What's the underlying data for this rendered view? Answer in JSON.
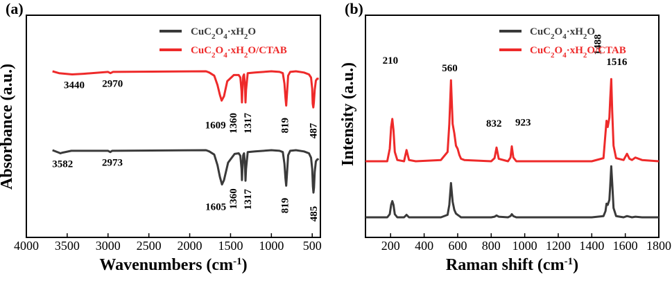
{
  "colors": {
    "black_series": "#3a3a3a",
    "red_series": "#ee2a2a"
  },
  "chart_data": [
    {
      "type": "line",
      "panel_label": "(a)",
      "xlabel_main": "Wavenumbers (cm",
      "xlabel_sup": "-1",
      "xlabel_tail": ")",
      "ylabel": "Absorbance (a.u.)",
      "xlim": [
        4000,
        400
      ],
      "x_reversed": true,
      "y_ticks_shown": false,
      "x_ticks": [
        4000,
        3500,
        3000,
        2500,
        2000,
        1500,
        1000,
        500
      ],
      "legend": {
        "placement": "top-right",
        "entries": [
          {
            "series": 0,
            "parts": [
              [
                "CuC"
              ],
              [
                "2",
                "sub"
              ],
              [
                "O"
              ],
              [
                "4",
                "sub"
              ],
              [
                "·xH"
              ],
              [
                "2",
                "sub"
              ],
              [
                "O"
              ]
            ]
          },
          {
            "series": 1,
            "parts": [
              [
                "CuC"
              ],
              [
                "2",
                "sub"
              ],
              [
                "O"
              ],
              [
                "4",
                "sub"
              ],
              [
                "·xH"
              ],
              [
                "2",
                "sub"
              ],
              [
                "O/CTAB"
              ]
            ]
          }
        ]
      },
      "series": [
        {
          "name": "CuC2O4·xH2O",
          "color": "#3a3a3a",
          "x": [
            3680,
            3600,
            3582,
            3560,
            3450,
            3000,
            2973,
            2950,
            1800,
            1760,
            1700,
            1660,
            1630,
            1605,
            1580,
            1530,
            1450,
            1400,
            1380,
            1365,
            1360,
            1355,
            1345,
            1335,
            1325,
            1317,
            1310,
            1290,
            1200,
            1000,
            900,
            860,
            840,
            828,
            819,
            810,
            795,
            770,
            700,
            600,
            540,
            515,
            500,
            492,
            485,
            478,
            470,
            455,
            440,
            420
          ],
          "y": [
            0.0,
            -0.04,
            -0.05,
            -0.04,
            -0.01,
            -0.01,
            -0.03,
            -0.01,
            0.0,
            -0.02,
            -0.07,
            -0.24,
            -0.43,
            -0.55,
            -0.48,
            -0.2,
            -0.06,
            -0.05,
            -0.09,
            -0.3,
            -0.48,
            -0.32,
            -0.08,
            -0.05,
            -0.2,
            -0.49,
            -0.3,
            -0.03,
            -0.02,
            0.0,
            -0.01,
            -0.03,
            -0.22,
            -0.45,
            -0.57,
            -0.4,
            -0.08,
            -0.01,
            0.0,
            -0.02,
            -0.05,
            -0.12,
            -0.3,
            -0.58,
            -0.68,
            -0.6,
            -0.35,
            -0.18,
            -0.15,
            -0.14
          ]
        },
        {
          "name": "CuC2O4·xH2O/CTAB",
          "color": "#ee2a2a",
          "x": [
            3680,
            3600,
            3440,
            3300,
            3000,
            2970,
            2940,
            1800,
            1760,
            1700,
            1660,
            1630,
            1609,
            1580,
            1540,
            1460,
            1400,
            1380,
            1365,
            1360,
            1355,
            1345,
            1335,
            1325,
            1317,
            1310,
            1290,
            1200,
            1000,
            900,
            860,
            840,
            828,
            819,
            810,
            795,
            770,
            700,
            600,
            540,
            515,
            500,
            494,
            487,
            480,
            470,
            455,
            440,
            420
          ],
          "y": [
            0.0,
            -0.03,
            -0.05,
            -0.04,
            -0.01,
            -0.03,
            -0.01,
            0.0,
            -0.02,
            -0.07,
            -0.22,
            -0.38,
            -0.47,
            -0.4,
            -0.16,
            -0.06,
            -0.06,
            -0.1,
            -0.32,
            -0.5,
            -0.33,
            -0.08,
            -0.05,
            -0.2,
            -0.5,
            -0.3,
            -0.03,
            -0.02,
            0.0,
            -0.01,
            -0.03,
            -0.2,
            -0.42,
            -0.55,
            -0.38,
            -0.07,
            -0.01,
            0.0,
            -0.02,
            -0.05,
            -0.1,
            -0.28,
            -0.52,
            -0.58,
            -0.5,
            -0.3,
            -0.15,
            -0.12,
            -0.12
          ]
        }
      ],
      "annotations": [
        {
          "text": "3440",
          "series": 1,
          "rotate": false
        },
        {
          "text": "2970",
          "series": 1,
          "rotate": false
        },
        {
          "text": "1609",
          "series": 1,
          "rotate": false
        },
        {
          "text": "1360",
          "series": 1,
          "rotate": true
        },
        {
          "text": "1317",
          "series": 1,
          "rotate": true
        },
        {
          "text": "819",
          "series": 1,
          "rotate": true
        },
        {
          "text": "487",
          "series": 1,
          "rotate": true
        },
        {
          "text": "3582",
          "series": 0,
          "rotate": false
        },
        {
          "text": "2973",
          "series": 0,
          "rotate": false
        },
        {
          "text": "1605",
          "series": 0,
          "rotate": false
        },
        {
          "text": "1360",
          "series": 0,
          "rotate": true
        },
        {
          "text": "1317",
          "series": 0,
          "rotate": true
        },
        {
          "text": "819",
          "series": 0,
          "rotate": true
        },
        {
          "text": "485",
          "series": 0,
          "rotate": true
        }
      ]
    },
    {
      "type": "line",
      "panel_label": "(b)",
      "xlabel_main": "Raman shift (cm",
      "xlabel_sup": "-1",
      "xlabel_tail": ")",
      "ylabel": "Intensity (a.u.)",
      "xlim": [
        50,
        1800
      ],
      "x_reversed": false,
      "y_ticks_shown": false,
      "x_ticks": [
        200,
        400,
        600,
        800,
        1000,
        1200,
        1400,
        1600,
        1800
      ],
      "legend": {
        "placement": "top-right",
        "entries": [
          {
            "series": 0,
            "parts": [
              [
                "CuC"
              ],
              [
                "2",
                "sub"
              ],
              [
                "O"
              ],
              [
                "4",
                "sub"
              ],
              [
                "·xH"
              ],
              [
                "2",
                "sub"
              ],
              [
                "O"
              ]
            ]
          },
          {
            "series": 1,
            "parts": [
              [
                "CuC"
              ],
              [
                "2",
                "sub"
              ],
              [
                "O"
              ],
              [
                "4",
                "sub"
              ],
              [
                "·xH"
              ],
              [
                "2",
                "sub"
              ],
              [
                "O/CTAB"
              ]
            ]
          }
        ]
      },
      "series": [
        {
          "name": "CuC2O4·xH2O",
          "color": "#3a3a3a",
          "x": [
            50,
            180,
            195,
            203,
            210,
            217,
            225,
            240,
            280,
            295,
            310,
            350,
            500,
            540,
            550,
            560,
            570,
            580,
            590,
            600,
            610,
            620,
            640,
            800,
            820,
            832,
            845,
            900,
            915,
            923,
            932,
            950,
            1400,
            1470,
            1482,
            1488,
            1495,
            1505,
            1510,
            1516,
            1522,
            1530,
            1545,
            1590,
            1610,
            1625,
            1640,
            1660,
            1700,
            1800
          ],
          "y": [
            0.0,
            0.0,
            0.05,
            0.2,
            0.26,
            0.2,
            0.05,
            0.0,
            0.0,
            0.04,
            0.0,
            0.0,
            0.0,
            0.04,
            0.2,
            0.55,
            0.25,
            0.12,
            0.06,
            0.04,
            0.02,
            0.0,
            0.0,
            0.0,
            0.01,
            0.03,
            0.01,
            0.0,
            0.02,
            0.05,
            0.02,
            0.0,
            0.0,
            0.02,
            0.1,
            0.22,
            0.2,
            0.28,
            0.5,
            0.82,
            0.55,
            0.15,
            0.02,
            0.0,
            0.02,
            0.01,
            0.0,
            0.01,
            0.0,
            0.0
          ]
        },
        {
          "name": "CuC2O4·xH2O/CTAB",
          "color": "#ee2a2a",
          "x": [
            50,
            180,
            195,
            203,
            210,
            217,
            225,
            240,
            280,
            295,
            310,
            350,
            500,
            540,
            550,
            560,
            570,
            580,
            590,
            600,
            610,
            620,
            640,
            800,
            820,
            832,
            845,
            900,
            915,
            923,
            932,
            950,
            1400,
            1470,
            1482,
            1488,
            1495,
            1505,
            1510,
            1516,
            1522,
            1530,
            1545,
            1590,
            1610,
            1625,
            1640,
            1660,
            1700,
            1800
          ],
          "y": [
            0.0,
            0.0,
            0.2,
            0.55,
            0.68,
            0.5,
            0.15,
            0.02,
            0.0,
            0.18,
            0.02,
            0.0,
            0.02,
            0.15,
            0.6,
            1.3,
            0.6,
            0.45,
            0.25,
            0.2,
            0.1,
            0.04,
            0.02,
            0.0,
            0.05,
            0.22,
            0.04,
            0.0,
            0.06,
            0.24,
            0.06,
            0.0,
            0.0,
            0.05,
            0.45,
            0.65,
            0.55,
            0.7,
            1.0,
            1.32,
            0.8,
            0.25,
            0.05,
            0.02,
            0.12,
            0.04,
            0.02,
            0.06,
            0.02,
            0.0
          ]
        }
      ],
      "annotations": [
        {
          "text": "210",
          "series": 1,
          "rotate": false
        },
        {
          "text": "560",
          "series": 1,
          "rotate": false
        },
        {
          "text": "832",
          "series": 1,
          "rotate": false
        },
        {
          "text": "923",
          "series": 1,
          "rotate": false
        },
        {
          "text": "1488",
          "series": 1,
          "rotate": true
        },
        {
          "text": "1516",
          "series": 1,
          "rotate": false
        }
      ]
    }
  ]
}
